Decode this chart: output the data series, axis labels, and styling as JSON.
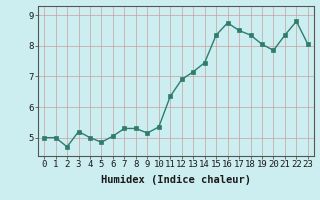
{
  "x": [
    0,
    1,
    2,
    3,
    4,
    5,
    6,
    7,
    8,
    9,
    10,
    11,
    12,
    13,
    14,
    15,
    16,
    17,
    18,
    19,
    20,
    21,
    22,
    23
  ],
  "y": [
    5.0,
    5.0,
    4.7,
    5.2,
    5.0,
    4.85,
    5.05,
    5.3,
    5.3,
    5.15,
    5.35,
    6.35,
    6.9,
    7.15,
    7.45,
    8.35,
    8.75,
    8.5,
    8.35,
    8.05,
    7.85,
    8.35,
    8.8,
    8.05
  ],
  "xlabel": "Humidex (Indice chaleur)",
  "ylim": [
    4.4,
    9.3
  ],
  "xlim": [
    -0.5,
    23.5
  ],
  "yticks": [
    5,
    6,
    7,
    8,
    9
  ],
  "xticks": [
    0,
    1,
    2,
    3,
    4,
    5,
    6,
    7,
    8,
    9,
    10,
    11,
    12,
    13,
    14,
    15,
    16,
    17,
    18,
    19,
    20,
    21,
    22,
    23
  ],
  "line_color": "#2d7d6e",
  "marker_color": "#2d7d6e",
  "bg_color": "#cceef0",
  "grid_color": "#c8a0a0",
  "xlabel_fontsize": 7.5,
  "tick_fontsize": 6.5,
  "line_width": 1.0,
  "marker_size": 2.5
}
